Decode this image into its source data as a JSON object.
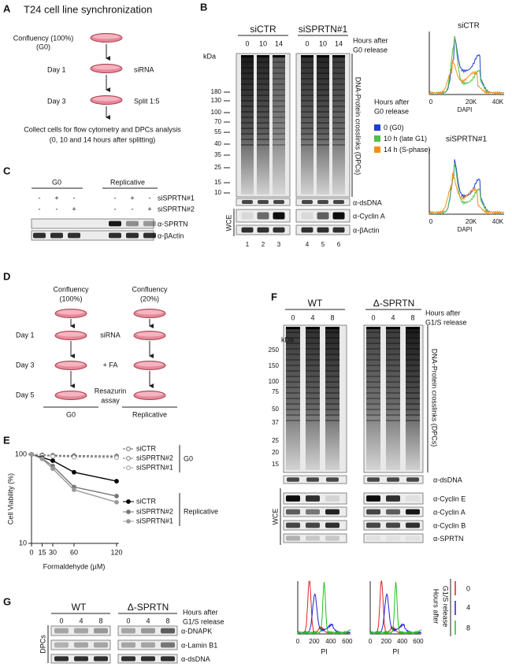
{
  "panel_labels": [
    "A",
    "B",
    "C",
    "D",
    "E",
    "F",
    "G"
  ],
  "a": {
    "title": "T24 cell line synchronization",
    "start": [
      "Confluency (100%)",
      "(G0)"
    ],
    "days": [
      "Day 1",
      "Day 3"
    ],
    "treatments": [
      "siRNA",
      "Split 1:5"
    ],
    "end": [
      "Collect cells for flow cytometry and DPCs analysis",
      "(0, 10 and 14 hours after splitting)"
    ]
  },
  "b": {
    "conditions": [
      "siCTR",
      "siSPRTN#1"
    ],
    "hours": [
      "0",
      "10",
      "14"
    ],
    "hours_title": [
      "Hours after",
      "G0 release"
    ],
    "kda": "kDa",
    "markers": [
      "180",
      "130",
      "100",
      "70",
      "55",
      "40",
      "35",
      "25",
      "15",
      "10"
    ],
    "dpc_label": "DNA-Protein crosslinks (DPCs)",
    "blots": [
      "α-dsDNA",
      "α-Cyclin A",
      "α-βActin"
    ],
    "wce": "WCE",
    "lanes": [
      "1",
      "2",
      "3",
      "4",
      "5",
      "6"
    ],
    "legend_title": [
      "Hours after",
      "G0 release"
    ],
    "legend": [
      {
        "name": "0 (G0)",
        "color": "#1f3fd0"
      },
      {
        "name": "10 h (late G1)",
        "color": "#4cc24c"
      },
      {
        "name": "14 h (S-phase)",
        "color": "#f0901c"
      }
    ],
    "flow_titles": [
      "siCTR",
      "siSPRTN#1"
    ],
    "flow_ticks": [
      "0",
      "20K",
      "40K"
    ],
    "flow_xlabel": "DAPI"
  },
  "c": {
    "groups": [
      "G0",
      "Replicative"
    ],
    "rows": [
      {
        "label": "siSPRTN#1",
        "signs": [
          "-",
          "+",
          "-",
          "-",
          "+",
          "-"
        ]
      },
      {
        "label": "siSPRTN#2",
        "signs": [
          "-",
          "-",
          "+",
          "-",
          "-",
          "+"
        ]
      }
    ],
    "blots": [
      "α-SPRTN",
      "α-βActin"
    ]
  },
  "d": {
    "columns": [
      [
        "Confluency",
        "(100%)"
      ],
      [
        "Confluency",
        "(20%)"
      ]
    ],
    "days": [
      "Day 1",
      "Day 3",
      "Day 5"
    ],
    "treatments": [
      "siRNA",
      "+ FA",
      "Resazurin",
      "assay"
    ],
    "groups": [
      "G0",
      "Replicative"
    ]
  },
  "e": {
    "chart_data": {
      "type": "line",
      "ylabel": "Cell Viability (%)",
      "xlabel": "Formaldehyde (µM)",
      "x": [
        0,
        15,
        30,
        60,
        120
      ],
      "xlim": [
        0,
        120
      ],
      "xticks": [
        0,
        15,
        30,
        60,
        120
      ],
      "ylim": [
        10,
        100
      ],
      "yticks": [
        10,
        100
      ],
      "log_y": true,
      "groups": [
        "G0",
        "Replicative"
      ],
      "series": [
        {
          "name": "siCTR",
          "color": "#666666",
          "dashed": true,
          "filled": false,
          "values": [
            100,
            99,
            98,
            97,
            96
          ]
        },
        {
          "name": "siSPRTN#2",
          "color": "#777777",
          "dashed": true,
          "filled": false,
          "values": [
            100,
            98,
            96,
            95,
            94
          ]
        },
        {
          "name": "siSPRTN#1",
          "color": "#999999",
          "dashed": true,
          "filled": false,
          "values": [
            100,
            97,
            95,
            93,
            92
          ]
        },
        {
          "name": "siCTR",
          "color": "#000000",
          "dashed": false,
          "filled": true,
          "values": [
            100,
            92,
            85,
            63,
            50
          ]
        },
        {
          "name": "siSPRTN#2",
          "color": "#777777",
          "dashed": false,
          "filled": true,
          "values": [
            100,
            90,
            74,
            43,
            34
          ]
        },
        {
          "name": "siSPRTN#1",
          "color": "#9a9a9a",
          "dashed": false,
          "filled": true,
          "values": [
            100,
            89,
            69,
            40,
            29
          ]
        }
      ]
    }
  },
  "f": {
    "conditions": [
      "WT",
      "Δ-SPRTN"
    ],
    "hours": [
      "0",
      "4",
      "8"
    ],
    "hours_title": [
      "Hours after",
      "G1/S release"
    ],
    "kda": "kDa",
    "markers": [
      "250",
      "150",
      "100",
      "75",
      "50",
      "37",
      "25",
      "20",
      "15"
    ],
    "dpc_label": "DNA-Protein crosslinks (DPCs)",
    "dsdna": "α-dsDNA",
    "wce": "WCE",
    "wce_blots": [
      "α-Cyclin E",
      "α-Cyclin A",
      "α-Cyclin B",
      "α-SPRTN"
    ],
    "flow_ticks": [
      "0",
      "200",
      "400",
      "600"
    ],
    "flow_xlabel": "PI",
    "legend_title": [
      "Hours after",
      "G1/S release"
    ],
    "legend": [
      {
        "name": "0",
        "color": "#e02020"
      },
      {
        "name": "4",
        "color": "#2020d0"
      },
      {
        "name": "8",
        "color": "#20c020"
      }
    ]
  },
  "g": {
    "conditions": [
      "WT",
      "Δ-SPRTN"
    ],
    "hours": [
      "0",
      "4",
      "8"
    ],
    "hours_title": [
      "Hours after",
      "G1/S release"
    ],
    "blots": [
      "α-DNAPK",
      "α-Lamin B1",
      "α-dsDNA"
    ],
    "dpcs": "DPCs"
  }
}
